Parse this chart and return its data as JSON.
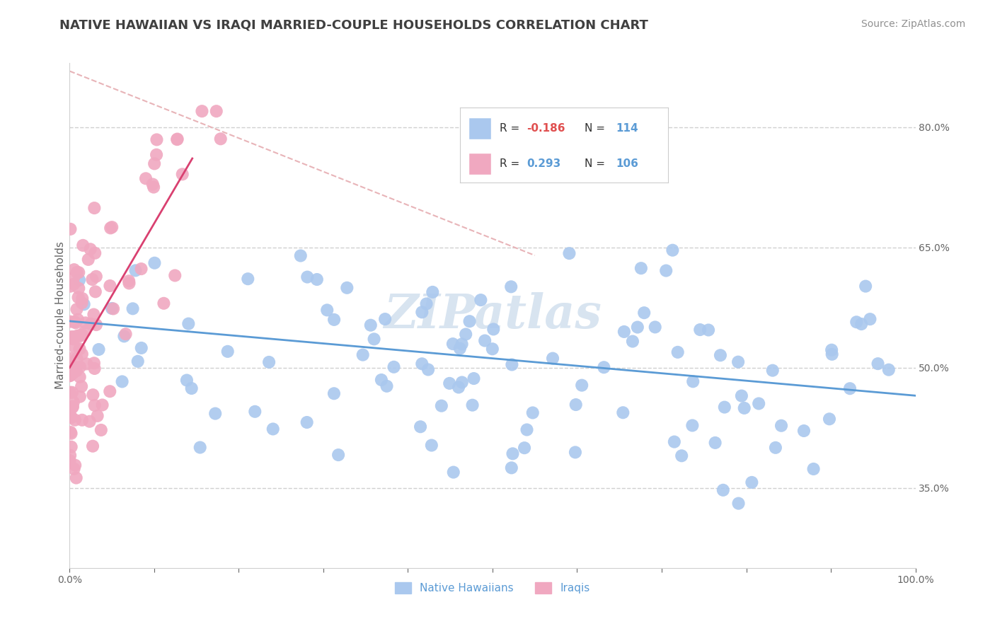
{
  "title": "NATIVE HAWAIIAN VS IRAQI MARRIED-COUPLE HOUSEHOLDS CORRELATION CHART",
  "source": "Source: ZipAtlas.com",
  "ylabel": "Married-couple Households",
  "xlim": [
    0,
    1.0
  ],
  "ylim": [
    0.25,
    0.88
  ],
  "xticks": [
    0.0,
    0.1,
    0.2,
    0.3,
    0.4,
    0.5,
    0.6,
    0.7,
    0.8,
    0.9,
    1.0
  ],
  "xtick_labels": [
    "0.0%",
    "",
    "",
    "",
    "",
    "",
    "",
    "",
    "",
    "",
    "100.0%"
  ],
  "yticks": [
    0.35,
    0.5,
    0.65,
    0.8
  ],
  "ytick_labels": [
    "35.0%",
    "50.0%",
    "65.0%",
    "80.0%"
  ],
  "blue_color": "#aac8ee",
  "pink_color": "#f0a8c0",
  "blue_line_color": "#5b9bd5",
  "pink_line_color": "#d94070",
  "diag_line_color": "#e8b4b8",
  "title_color": "#404040",
  "source_color": "#909090",
  "axis_color": "#d0d0d0",
  "watermark_color": "#d8e4f0",
  "background_color": "#ffffff",
  "blue_slope": -0.093,
  "blue_intercept": 0.558,
  "pink_slope": 1.8,
  "pink_intercept": 0.5,
  "pink_line_x_end": 0.145,
  "title_fontsize": 13,
  "source_fontsize": 10,
  "axis_label_fontsize": 11,
  "tick_fontsize": 10
}
